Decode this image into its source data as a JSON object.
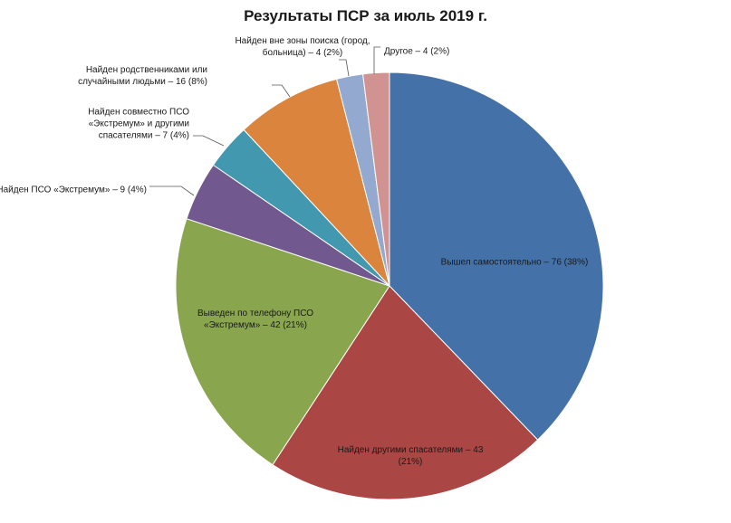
{
  "chart_data": {
    "type": "pie",
    "title": "Результаты ПСР за июль 2019 г.",
    "legend": "none",
    "slices": [
      {
        "name": "Вышел самостоятельно",
        "value": 76,
        "percent": "38%",
        "color": "#4472a8",
        "label_lines": [
          "Вышел самостоятельно –  76 (38%)"
        ]
      },
      {
        "name": "Найден другими спасателями",
        "value": 43,
        "percent": "21%",
        "color": "#aa4643",
        "label_lines": [
          "Найден другими спасателями –  43",
          "(21%)"
        ]
      },
      {
        "name": "Выведен  по телефону  ПСО «Экстремум»",
        "value": 42,
        "percent": "21%",
        "color": "#89a54e",
        "label_lines": [
          "Выведен  по телефону  ПСО",
          "«Экстремум» – 42 (21%)"
        ]
      },
      {
        "name": "Найден ПСО «Экстремум»",
        "value": 9,
        "percent": "4%",
        "color": "#71588f",
        "label_lines": [
          "Найден ПСО «Экстремум» –  9 (4%)"
        ]
      },
      {
        "name": "Найден совместно ПСО «Экстремум» и другими спасателями",
        "value": 7,
        "percent": "4%",
        "color": "#4198af",
        "label_lines": [
          "Найден совместно ПСО",
          "«Экстремум»  и другими",
          "спасателями –  7 (4%)"
        ]
      },
      {
        "name": "Найден родственниками или случайными людьми",
        "value": 16,
        "percent": "8%",
        "color": "#db843d",
        "label_lines": [
          "Найден родственниками  или",
          "случайными людьми –  16 (8%)"
        ]
      },
      {
        "name": "Найден вне зоны поиска (город, больница)",
        "value": 4,
        "percent": "2%",
        "color": "#93a9cf",
        "label_lines": [
          "Найден вне зоны поиска (город,",
          "больница) –  4 (2%)"
        ]
      },
      {
        "name": "Другое",
        "value": 4,
        "percent": "2%",
        "color": "#d19392",
        "label_lines": [
          "Другое –  4 (2%)"
        ]
      }
    ]
  }
}
